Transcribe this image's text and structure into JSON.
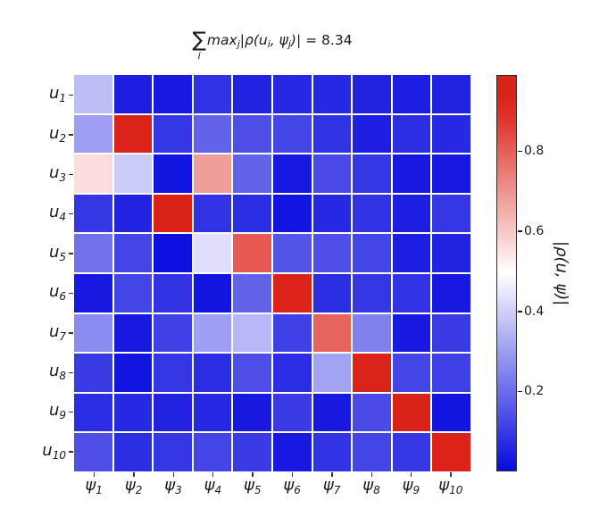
{
  "figure": {
    "background": "#ffffff",
    "title": {
      "sigma": "∑",
      "sigma_sub": "i",
      "parts": [
        {
          "text": "max"
        },
        {
          "text": "j"
        },
        {
          "text": "|ρ(u"
        },
        {
          "text": "i"
        },
        {
          "text": ", ψ"
        },
        {
          "text": "j"
        },
        {
          "text": ")|"
        },
        {
          "text": " = 8.34"
        }
      ],
      "result_value": "8.34"
    }
  },
  "chart_data": {
    "type": "heatmap",
    "title": "∑_i max_j |ρ(u_i, ψ_j)| = 8.34",
    "row_labels": [
      "u_1",
      "u_2",
      "u_3",
      "u_4",
      "u_5",
      "u_6",
      "u_7",
      "u_8",
      "u_9",
      "u_10"
    ],
    "col_labels": [
      "ψ_1",
      "ψ_2",
      "ψ_3",
      "ψ_4",
      "ψ_5",
      "ψ_6",
      "ψ_7",
      "ψ_8",
      "ψ_9",
      "ψ_10"
    ],
    "matrix": [
      [
        0.36,
        0.04,
        0.03,
        0.08,
        0.05,
        0.06,
        0.06,
        0.05,
        0.04,
        0.05
      ],
      [
        0.3,
        0.95,
        0.09,
        0.18,
        0.14,
        0.12,
        0.08,
        0.04,
        0.07,
        0.06
      ],
      [
        0.56,
        0.39,
        0.02,
        0.68,
        0.18,
        0.03,
        0.13,
        0.09,
        0.03,
        0.03
      ],
      [
        0.09,
        0.05,
        0.96,
        0.08,
        0.07,
        0.02,
        0.06,
        0.08,
        0.04,
        0.09
      ],
      [
        0.21,
        0.12,
        0.01,
        0.43,
        0.81,
        0.15,
        0.14,
        0.12,
        0.04,
        0.05
      ],
      [
        0.03,
        0.12,
        0.08,
        0.02,
        0.18,
        0.94,
        0.07,
        0.09,
        0.08,
        0.03
      ],
      [
        0.26,
        0.03,
        0.11,
        0.3,
        0.35,
        0.11,
        0.79,
        0.24,
        0.03,
        0.1
      ],
      [
        0.1,
        0.02,
        0.09,
        0.07,
        0.14,
        0.07,
        0.31,
        0.95,
        0.12,
        0.11
      ],
      [
        0.07,
        0.06,
        0.05,
        0.06,
        0.03,
        0.1,
        0.03,
        0.13,
        0.96,
        0.02
      ],
      [
        0.14,
        0.07,
        0.09,
        0.12,
        0.1,
        0.03,
        0.08,
        0.12,
        0.09,
        0.94
      ]
    ],
    "sum_of_row_maxima": 8.34,
    "colormap": "bwr",
    "vmin": 0.0,
    "vmax": 0.99,
    "grid_gap_color": "#ffffff",
    "legend_position": "right",
    "colorbar": {
      "label": "|ρ(u, ψ)|",
      "ticks": [
        0.8,
        0.6,
        0.4,
        0.2
      ],
      "tick_labels": [
        "0.8",
        "0.6",
        "0.4",
        "0.2"
      ],
      "color_low": "#0a0ade",
      "color_mid": "#ffffff",
      "color_high": "#dc3226"
    }
  }
}
